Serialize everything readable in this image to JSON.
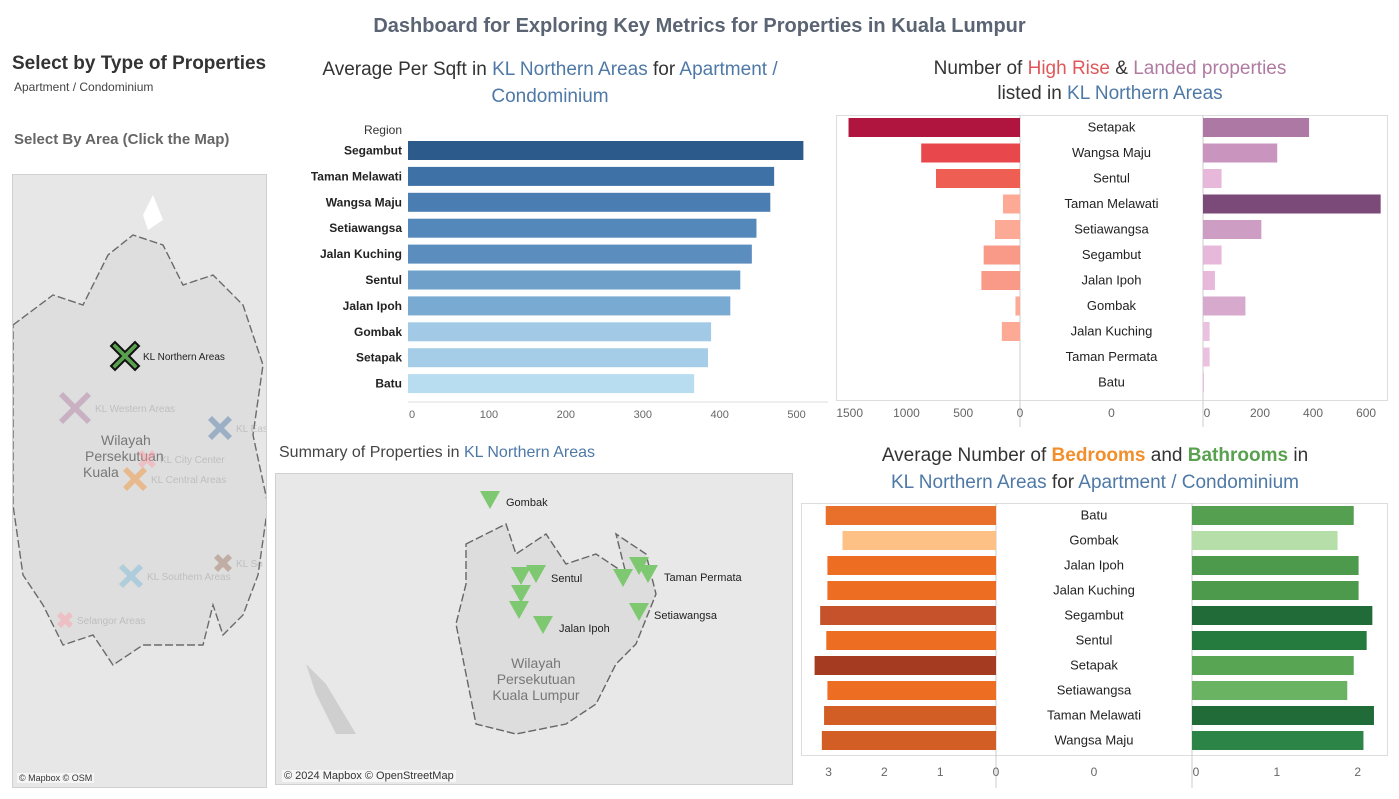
{
  "dashboard": {
    "title": "Dashboard for Exploring Key Metrics for Properties in Kuala Lumpur"
  },
  "filters": {
    "type_label": "Select by Type of Properties",
    "type_value": "Apartment / Condominium",
    "area_label": "Select By Area (Click the Map)"
  },
  "left_map": {
    "areas": [
      {
        "name": "KL Northern Areas",
        "color": "#59a14f",
        "selected": true
      },
      {
        "name": "KL Western Areas",
        "color": "#b07aa1",
        "selected": false
      },
      {
        "name": "KL Eas",
        "color": "#4e79a7",
        "selected": false
      },
      {
        "name": "KL City Center",
        "color": "#ff9da7",
        "selected": false
      },
      {
        "name": "KL Central Areas",
        "color": "#f28e2b",
        "selected": false
      },
      {
        "name": "KL So",
        "color": "#9c755f",
        "selected": false
      },
      {
        "name": "KL Southern Areas",
        "color": "#76b7d8",
        "selected": false
      },
      {
        "name": "Selangor Areas",
        "color": "#ff9da7",
        "selected": false
      }
    ],
    "place_label": [
      "Wilayah",
      "Persekutuan",
      "Kuala"
    ],
    "attribution": "© Mapbox © OSM"
  },
  "psf_chart": {
    "title_parts": [
      "Average Per Sqft in ",
      "KL Northern Areas",
      " for ",
      "Apartment /",
      "Condominium"
    ],
    "region_header": "Region"
  },
  "listings_chart": {
    "title_parts": [
      "Number of ",
      "High Rise",
      " & ",
      "Landed properties",
      "listed in ",
      "KL Northern Areas"
    ]
  },
  "summary_map": {
    "title_parts": [
      "Summary of Properties in ",
      "KL Northern Areas"
    ],
    "markers": [
      {
        "label": "Gombak"
      },
      {
        "label": "Sentul"
      },
      {
        "label": "Taman Permata"
      },
      {
        "label": "Setiawangsa"
      },
      {
        "label": "Jalan Ipoh"
      }
    ],
    "place_label": [
      "Wilayah",
      "Persekutuan",
      "Kuala Lumpur"
    ],
    "attribution": "© 2024 Mapbox © OpenStreetMap"
  },
  "rooms_chart": {
    "title_parts": [
      "Average Number of ",
      "Bedrooms",
      " and ",
      "Bathrooms",
      " in",
      "KL Northern Areas",
      " for  ",
      "Apartment / Condominium"
    ]
  },
  "chart_data": [
    {
      "id": "psf",
      "type": "bar",
      "orientation": "horizontal",
      "categories": [
        "Segambut",
        "Taman Melawati",
        "Wangsa Maju",
        "Setiawangsa",
        "Jalan Kuching",
        "Sentul",
        "Jalan Ipoh",
        "Gombak",
        "Setapak",
        "Batu"
      ],
      "values": [
        514,
        476,
        471,
        453,
        447,
        432,
        419,
        394,
        390,
        372
      ],
      "xticks": [
        0,
        100,
        200,
        300,
        400,
        500
      ],
      "xlim": [
        0,
        540
      ],
      "colors": [
        "#2c5a8a",
        "#3e72a7",
        "#4a7eb2",
        "#5487ba",
        "#5b8dbe",
        "#6ea0c9",
        "#78aad2",
        "#a2cae6",
        "#a6cde8",
        "#b8dcf0"
      ]
    },
    {
      "id": "listings",
      "type": "bar",
      "orientation": "diverging",
      "categories": [
        "Setapak",
        "Wangsa Maju",
        "Sentul",
        "Taman Melawati",
        "Setiawangsa",
        "Segambut",
        "Jalan Ipoh",
        "Gombak",
        "Jalan Kuching",
        "Taman Permata",
        "Batu"
      ],
      "series": [
        {
          "name": "High Rise",
          "values": [
            1510,
            870,
            740,
            150,
            220,
            320,
            340,
            40,
            160,
            0,
            0
          ],
          "colors": [
            "#b0153f",
            "#e8474b",
            "#ee5e52",
            "#fcaa96",
            "#fcaa96",
            "#f99a88",
            "#f99a88",
            "#fcaa96",
            "#fcaa96",
            "#fcaa96",
            "#fcaa96"
          ]
        },
        {
          "name": "Landed",
          "values": [
            400,
            280,
            70,
            670,
            220,
            70,
            45,
            160,
            25,
            25,
            0
          ],
          "colors": [
            "#ad78a4",
            "#c994be",
            "#e7b8d9",
            "#7b4a78",
            "#ce9dc3",
            "#e7b8d9",
            "#e7b8d9",
            "#d7a9cd",
            "#eac2e0",
            "#eac2e0",
            "#eac2e0"
          ]
        }
      ],
      "left_ticks": [
        1500,
        1000,
        500,
        0
      ],
      "left_lim": 1550,
      "center_tick": "0",
      "right_ticks": [
        0,
        200,
        400,
        600
      ],
      "right_lim": 660
    },
    {
      "id": "rooms",
      "type": "bar",
      "orientation": "diverging",
      "categories": [
        "Batu",
        "Gombak",
        "Jalan Ipoh",
        "Jalan Kuching",
        "Segambut",
        "Sentul",
        "Setapak",
        "Setiawangsa",
        "Taman Melawati",
        "Wangsa Maju"
      ],
      "series": [
        {
          "name": "Bedrooms",
          "values": [
            3.05,
            2.75,
            3.02,
            3.02,
            3.15,
            3.04,
            3.25,
            3.02,
            3.08,
            3.12
          ],
          "colors": [
            "#e8702a",
            "#fdc085",
            "#ed6d23",
            "#ed6d23",
            "#c5522b",
            "#ed6d23",
            "#a53c21",
            "#ed6d23",
            "#d25e26",
            "#d25e26"
          ]
        },
        {
          "name": "Bathrooms",
          "values": [
            2.0,
            1.8,
            2.06,
            2.06,
            2.23,
            2.16,
            2.0,
            1.92,
            2.25,
            2.12
          ],
          "colors": [
            "#55a050",
            "#b5dea8",
            "#4e9a4c",
            "#4e9a4c",
            "#206b37",
            "#257b3e",
            "#58a653",
            "#69b362",
            "#206b37",
            "#2c8446"
          ]
        }
      ],
      "left_ticks": [
        3,
        2,
        1,
        0
      ],
      "left_lim": 3.35,
      "center_tick": "0",
      "right_ticks": [
        0,
        1,
        2
      ],
      "right_lim": 2.3
    }
  ]
}
